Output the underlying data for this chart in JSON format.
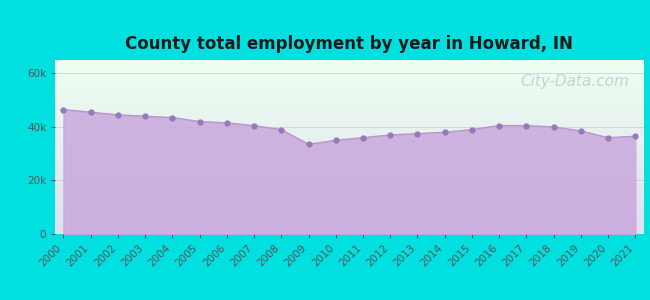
{
  "title": "County total employment by year in Howard, IN",
  "title_fontsize": 12,
  "title_fontweight": "bold",
  "title_color": "#1a1a1a",
  "years": [
    2000,
    2001,
    2002,
    2003,
    2004,
    2005,
    2006,
    2007,
    2008,
    2009,
    2010,
    2011,
    2012,
    2013,
    2014,
    2015,
    2016,
    2017,
    2018,
    2019,
    2020,
    2021
  ],
  "values": [
    46500,
    45500,
    44500,
    44000,
    43500,
    42000,
    41500,
    40500,
    39000,
    33500,
    35000,
    36000,
    37000,
    37500,
    38000,
    39000,
    40500,
    40500,
    40000,
    38500,
    36000,
    36500
  ],
  "line_color": "#b899cc",
  "fill_color": "#c9a8dd",
  "fill_alpha": 0.85,
  "marker_color": "#9977bb",
  "marker_size": 3.5,
  "background_color": "#00e0e0",
  "plot_bg_gradient_top": "#edfff0",
  "plot_bg_gradient_bottom": "#e0e0f0",
  "ytick_labels": [
    "0",
    "20k",
    "40k",
    "60k"
  ],
  "ytick_values": [
    0,
    20000,
    40000,
    60000
  ],
  "ylim": [
    0,
    65000
  ],
  "grid_color": "#cccccc",
  "tick_color": "#555555",
  "tick_fontsize": 7.5,
  "watermark_text": "City-Data.com",
  "watermark_color": "#99bbbb",
  "watermark_alpha": 0.55,
  "watermark_fontsize": 11
}
